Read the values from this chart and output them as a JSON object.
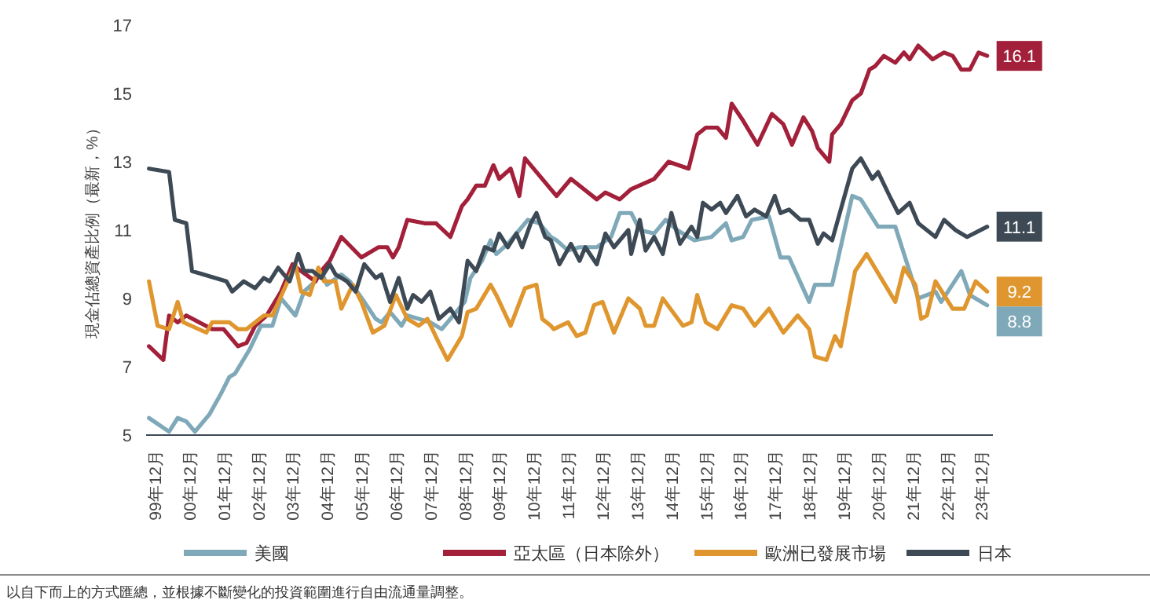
{
  "chart_data": {
    "type": "line",
    "ylabel": "現金佔總資產比例（最新，%）",
    "ylim": [
      5,
      17
    ],
    "yticks": [
      5,
      7,
      9,
      11,
      13,
      15,
      17
    ],
    "xlim": [
      "1999-09",
      "2024-04"
    ],
    "xticks": [
      {
        "value": "1999-12",
        "label": "99年12月"
      },
      {
        "value": "2000-12",
        "label": "00年12月"
      },
      {
        "value": "2001-12",
        "label": "01年12月"
      },
      {
        "value": "2002-12",
        "label": "02年12月"
      },
      {
        "value": "2003-12",
        "label": "03年12月"
      },
      {
        "value": "2004-12",
        "label": "04年12月"
      },
      {
        "value": "2005-12",
        "label": "05年12月"
      },
      {
        "value": "2006-12",
        "label": "06年12月"
      },
      {
        "value": "2007-12",
        "label": "07年12月"
      },
      {
        "value": "2008-12",
        "label": "08年12月"
      },
      {
        "value": "2009-12",
        "label": "09年12月"
      },
      {
        "value": "2010-12",
        "label": "10年12月"
      },
      {
        "value": "2011-12",
        "label": "11年12月"
      },
      {
        "value": "2012-12",
        "label": "12年12月"
      },
      {
        "value": "2013-12",
        "label": "13年12月"
      },
      {
        "value": "2014-12",
        "label": "14年12月"
      },
      {
        "value": "2015-12",
        "label": "15年12月"
      },
      {
        "value": "2016-12",
        "label": "16年12月"
      },
      {
        "value": "2017-12",
        "label": "17年12月"
      },
      {
        "value": "2018-12",
        "label": "18年12月"
      },
      {
        "value": "2019-12",
        "label": "19年12月"
      },
      {
        "value": "2020-12",
        "label": "20年12月"
      },
      {
        "value": "2021-12",
        "label": "21年12月"
      },
      {
        "value": "2022-12",
        "label": "22年12月"
      },
      {
        "value": "2023-12",
        "label": "23年12月"
      }
    ],
    "grid": false,
    "legend": "bottom",
    "marker": "none",
    "line_style": "solid",
    "series": [
      {
        "name": "美國",
        "color": "#7fa9b8",
        "x": [
          "1999-10",
          "2000-05",
          "2000-08",
          "2000-11",
          "2001-02",
          "2001-07",
          "2001-11",
          "2002-02",
          "2002-04",
          "2002-09",
          "2003-01",
          "2003-05",
          "2003-08",
          "2004-01",
          "2004-04",
          "2004-08",
          "2004-10",
          "2004-12",
          "2005-05",
          "2005-08",
          "2006-01",
          "2006-05",
          "2006-07",
          "2006-10",
          "2007-02",
          "2007-04",
          "2007-08",
          "2007-12",
          "2008-04",
          "2008-08",
          "2008-12",
          "2009-02",
          "2009-06",
          "2009-09",
          "2009-11",
          "2010-03",
          "2010-07",
          "2010-10",
          "2011-02",
          "2011-06",
          "2011-08",
          "2011-12",
          "2012-04",
          "2012-10",
          "2013-03",
          "2013-06",
          "2013-10",
          "2014-01",
          "2014-06",
          "2014-10",
          "2015-02",
          "2015-08",
          "2016-02",
          "2016-07",
          "2016-09",
          "2017-01",
          "2017-04",
          "2017-10",
          "2018-02",
          "2018-05",
          "2018-12",
          "2019-02",
          "2019-08",
          "2020-03",
          "2020-06",
          "2020-12",
          "2021-06",
          "2022-02",
          "2022-08",
          "2022-10",
          "2023-05",
          "2023-08",
          "2024-02"
        ],
        "values": [
          5.5,
          5.1,
          5.5,
          5.4,
          5.1,
          5.6,
          6.2,
          6.7,
          6.8,
          7.5,
          8.2,
          8.2,
          9.0,
          8.5,
          9.2,
          9.5,
          9.8,
          9.4,
          9.7,
          9.5,
          8.9,
          8.4,
          8.3,
          8.6,
          8.2,
          8.5,
          8.4,
          8.3,
          8.1,
          8.5,
          8.9,
          9.6,
          10.1,
          10.7,
          10.3,
          10.6,
          11.0,
          11.3,
          11.2,
          10.8,
          10.7,
          10.4,
          10.5,
          10.5,
          10.8,
          11.5,
          11.5,
          11.0,
          10.9,
          11.3,
          11.0,
          10.7,
          10.8,
          11.2,
          10.7,
          10.8,
          11.3,
          11.4,
          10.2,
          10.2,
          8.9,
          9.4,
          9.4,
          12.0,
          11.9,
          11.1,
          11.1,
          9.0,
          9.2,
          8.9,
          9.8,
          9.1,
          8.8
        ]
      },
      {
        "name": "亞太區（日本除外）",
        "color": "#a3203a",
        "x": [
          "1999-10",
          "2000-03",
          "2000-05",
          "2000-08",
          "2000-11",
          "2001-08",
          "2001-12",
          "2002-05",
          "2002-08",
          "2002-11",
          "2003-03",
          "2003-08",
          "2003-12",
          "2004-03",
          "2004-08",
          "2004-10",
          "2005-01",
          "2005-05",
          "2005-12",
          "2006-06",
          "2006-09",
          "2006-11",
          "2007-01",
          "2007-04",
          "2007-10",
          "2008-02",
          "2008-07",
          "2008-11",
          "2009-01",
          "2009-04",
          "2009-07",
          "2009-10",
          "2009-12",
          "2010-04",
          "2010-07",
          "2010-09",
          "2011-06",
          "2011-08",
          "2012-01",
          "2012-10",
          "2013-01",
          "2013-06",
          "2013-10",
          "2014-06",
          "2014-11",
          "2015-06",
          "2015-09",
          "2015-12",
          "2016-04",
          "2016-07",
          "2016-09",
          "2017-01",
          "2017-06",
          "2017-11",
          "2018-03",
          "2018-06",
          "2018-10",
          "2019-01",
          "2019-03",
          "2019-07",
          "2019-08",
          "2019-11",
          "2020-03",
          "2020-06",
          "2020-09",
          "2020-11",
          "2021-02",
          "2021-06",
          "2021-09",
          "2021-11",
          "2022-02",
          "2022-07",
          "2022-11",
          "2023-02",
          "2023-05",
          "2023-08",
          "2023-11",
          "2024-02"
        ],
        "values": [
          7.6,
          7.2,
          8.5,
          8.3,
          8.5,
          8.1,
          8.1,
          7.6,
          7.7,
          8.2,
          8.5,
          9.2,
          10.0,
          9.8,
          9.5,
          9.8,
          10.1,
          10.8,
          10.2,
          10.5,
          10.5,
          10.2,
          10.5,
          11.3,
          11.2,
          11.2,
          10.8,
          11.7,
          11.9,
          12.3,
          12.3,
          12.9,
          12.5,
          12.8,
          12.0,
          13.1,
          12.2,
          12.0,
          12.5,
          11.9,
          12.1,
          11.9,
          12.2,
          12.5,
          13.0,
          12.8,
          13.8,
          14.0,
          14.0,
          13.7,
          14.7,
          14.2,
          13.5,
          14.4,
          14.1,
          13.5,
          14.3,
          13.9,
          13.4,
          13.0,
          13.8,
          14.1,
          14.8,
          15.0,
          15.7,
          15.8,
          16.1,
          15.9,
          16.2,
          16.0,
          16.4,
          16.0,
          16.2,
          16.1,
          15.7,
          15.7,
          16.2,
          16.1
        ]
      },
      {
        "name": "歐洲已發展市場",
        "color": "#e0962e",
        "x": [
          "1999-10",
          "2000-01",
          "2000-05",
          "2000-08",
          "2000-10",
          "2001-06",
          "2001-08",
          "2002-02",
          "2002-05",
          "2002-08",
          "2003-02",
          "2003-05",
          "2004-01",
          "2004-03",
          "2004-06",
          "2004-09",
          "2004-11",
          "2005-03",
          "2005-05",
          "2005-09",
          "2005-12",
          "2006-04",
          "2006-08",
          "2006-12",
          "2007-04",
          "2007-08",
          "2007-11",
          "2008-03",
          "2008-06",
          "2008-11",
          "2009-01",
          "2009-04",
          "2009-09",
          "2009-11",
          "2010-04",
          "2010-09",
          "2011-01",
          "2011-03",
          "2011-06",
          "2011-07",
          "2011-12",
          "2012-03",
          "2012-06",
          "2012-09",
          "2012-12",
          "2013-04",
          "2013-09",
          "2014-01",
          "2014-03",
          "2014-06",
          "2014-09",
          "2015-04",
          "2015-07",
          "2015-09",
          "2015-12",
          "2016-04",
          "2016-09",
          "2017-01",
          "2017-05",
          "2017-10",
          "2018-03",
          "2018-08",
          "2018-12",
          "2019-02",
          "2019-06",
          "2019-09",
          "2019-11",
          "2020-04",
          "2020-08",
          "2021-01",
          "2021-06",
          "2021-09",
          "2022-01",
          "2022-03",
          "2022-05",
          "2022-08",
          "2023-02",
          "2023-06",
          "2023-10",
          "2024-02"
        ],
        "values": [
          9.5,
          8.2,
          8.1,
          8.9,
          8.3,
          8.0,
          8.3,
          8.3,
          8.1,
          8.1,
          8.5,
          8.5,
          10.0,
          9.2,
          9.1,
          9.9,
          9.5,
          9.5,
          8.7,
          9.4,
          8.9,
          8.0,
          8.2,
          9.1,
          8.4,
          8.2,
          8.4,
          7.7,
          7.2,
          7.9,
          8.6,
          8.7,
          9.4,
          9.1,
          8.2,
          9.3,
          9.4,
          8.4,
          8.2,
          8.1,
          8.3,
          7.9,
          8.0,
          8.8,
          8.9,
          8.0,
          9.0,
          8.7,
          8.2,
          8.2,
          9.0,
          8.2,
          8.3,
          9.1,
          8.3,
          8.1,
          8.8,
          8.7,
          8.2,
          8.7,
          8.0,
          8.5,
          8.1,
          7.3,
          7.2,
          7.9,
          7.6,
          9.8,
          10.3,
          9.6,
          8.9,
          9.9,
          9.4,
          8.4,
          8.5,
          9.5,
          8.7,
          8.7,
          9.5,
          9.2
        ]
      },
      {
        "name": "日本",
        "color": "#3d4a55",
        "x": [
          "1999-10",
          "2000-05",
          "2000-07",
          "2000-11",
          "2001-01",
          "2002-01",
          "2002-03",
          "2002-07",
          "2002-11",
          "2003-02",
          "2003-04",
          "2003-07",
          "2003-11",
          "2004-02",
          "2004-04",
          "2004-07",
          "2004-10",
          "2005-01",
          "2005-03",
          "2005-07",
          "2005-10",
          "2006-01",
          "2006-05",
          "2006-07",
          "2006-10",
          "2007-01",
          "2007-04",
          "2007-06",
          "2007-09",
          "2007-12",
          "2008-03",
          "2008-07",
          "2008-10",
          "2009-01",
          "2009-04",
          "2009-07",
          "2009-10",
          "2009-12",
          "2010-03",
          "2010-06",
          "2010-08",
          "2010-11",
          "2011-01",
          "2011-04",
          "2011-06",
          "2011-09",
          "2012-01",
          "2012-04",
          "2012-06",
          "2012-10",
          "2013-01",
          "2013-04",
          "2013-09",
          "2013-10",
          "2014-01",
          "2014-03",
          "2014-06",
          "2014-09",
          "2014-12",
          "2015-03",
          "2015-07",
          "2015-09",
          "2015-11",
          "2016-02",
          "2016-05",
          "2016-07",
          "2016-11",
          "2017-02",
          "2017-05",
          "2017-09",
          "2017-12",
          "2018-02",
          "2018-05",
          "2018-09",
          "2018-12",
          "2019-03",
          "2019-05",
          "2019-08",
          "2019-11",
          "2020-03",
          "2020-06",
          "2020-08",
          "2020-10",
          "2020-12",
          "2021-04",
          "2021-07",
          "2021-11",
          "2022-02",
          "2022-08",
          "2022-11",
          "2023-03",
          "2023-07",
          "2024-02"
        ],
        "values": [
          12.8,
          12.7,
          11.3,
          11.2,
          9.8,
          9.5,
          9.2,
          9.5,
          9.3,
          9.6,
          9.5,
          9.9,
          9.5,
          10.3,
          9.8,
          9.8,
          9.6,
          10.0,
          9.7,
          9.5,
          9.2,
          10.0,
          9.6,
          9.7,
          8.9,
          9.6,
          8.7,
          9.1,
          8.9,
          9.2,
          8.4,
          8.7,
          8.3,
          10.1,
          9.8,
          10.5,
          10.4,
          10.9,
          10.5,
          10.9,
          10.5,
          11.2,
          11.5,
          10.8,
          10.7,
          10.0,
          10.6,
          10.1,
          10.5,
          10.0,
          10.9,
          10.5,
          11.0,
          10.3,
          11.3,
          10.4,
          10.8,
          10.3,
          11.5,
          10.6,
          11.1,
          10.8,
          11.8,
          11.6,
          11.8,
          11.5,
          12.0,
          11.4,
          11.6,
          11.4,
          12.0,
          11.5,
          11.6,
          11.3,
          11.3,
          10.6,
          10.9,
          10.7,
          11.6,
          12.8,
          13.1,
          12.8,
          12.5,
          12.7,
          12.0,
          11.5,
          11.8,
          11.2,
          10.8,
          11.3,
          11.0,
          10.8,
          11.1
        ]
      }
    ],
    "annotations": [
      {
        "text": "16.1",
        "x": "2024-02",
        "y": 16.1
      },
      {
        "text": "11.1",
        "x": "2024-02",
        "y": 11.1
      },
      {
        "text": "9.2",
        "x": "2024-02",
        "y": 9.2
      },
      {
        "text": "8.8",
        "x": "2024-02",
        "y": 8.8
      },
      "以自下而上的方式匯總，並根據不斷變化的投資範圍進行自由流通量調整。"
    ]
  }
}
